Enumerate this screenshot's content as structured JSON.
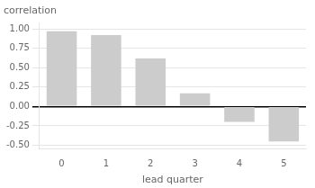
{
  "chart_data": {
    "type": "bar",
    "xlabel": "lead quarter",
    "ylabel": "correlation",
    "categories": [
      0,
      1,
      2,
      3,
      4,
      5
    ],
    "values": [
      0.97,
      0.92,
      0.62,
      0.17,
      -0.2,
      -0.45
    ],
    "color": "#cccccc",
    "ylim": [
      -0.55,
      1.08
    ],
    "yticks": [
      {
        "value": -0.5,
        "label": "-0.50"
      },
      {
        "value": -0.25,
        "label": "-0.25"
      },
      {
        "value": 0.0,
        "label": "0.00"
      },
      {
        "value": 0.25,
        "label": "0.25"
      },
      {
        "value": 0.5,
        "label": "0.50"
      },
      {
        "value": 0.75,
        "label": "0.75"
      },
      {
        "value": 1.0,
        "label": "1.00"
      }
    ],
    "grid": true
  }
}
